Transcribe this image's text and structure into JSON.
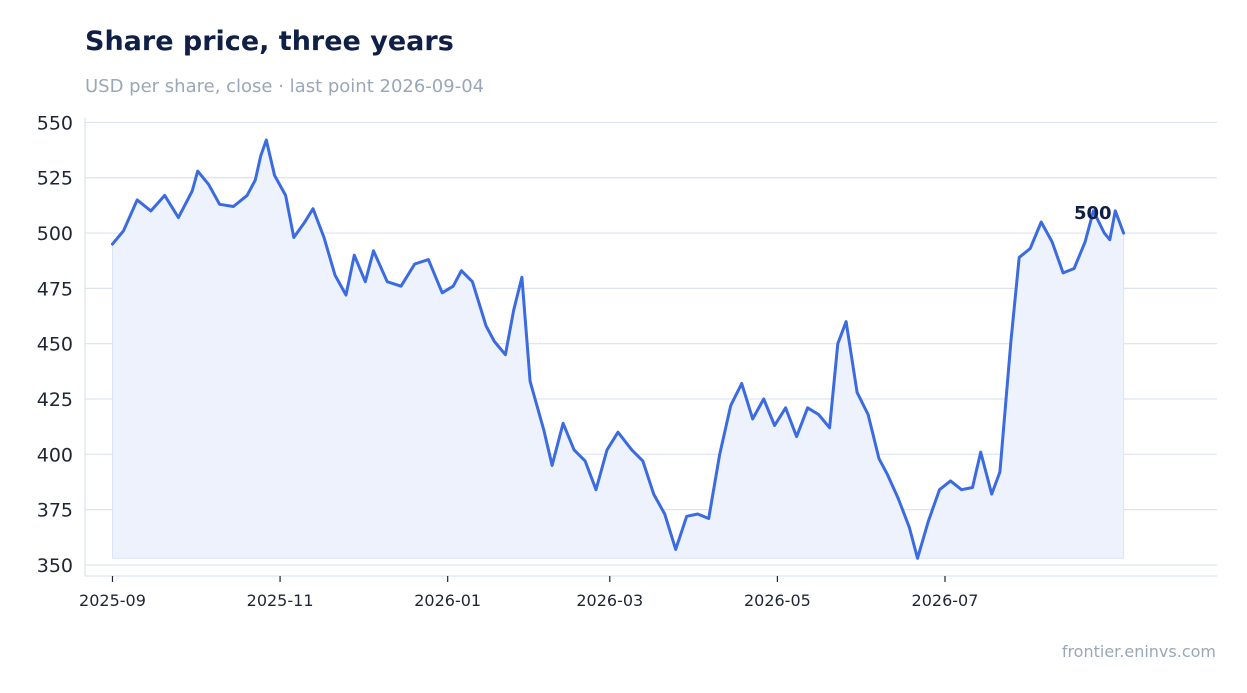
{
  "title": "Share price, three years",
  "subtitle": "USD per share, close · last point 2026-09-04",
  "footer": "frontier.eninvs.com",
  "colors": {
    "line": "#3b6be0",
    "fill": "#eef2fc",
    "grid": "#dde3f1",
    "title": "#0f1f45",
    "muted": "#9aa7b8"
  },
  "chart_data": {
    "type": "area",
    "title": "Share price, three years",
    "subtitle": "USD per share, close · last point 2026-09-04",
    "xlabel": "",
    "ylabel": "",
    "ylim": [
      345,
      552
    ],
    "yticks": [
      350,
      375,
      400,
      425,
      450,
      475,
      500,
      525,
      550
    ],
    "xlim": [
      "2025-08-22",
      "2026-10-08"
    ],
    "xticks": [
      "2025-09",
      "2025-11",
      "2026-01",
      "2026-03",
      "2026-05",
      "2026-07"
    ],
    "grid": true,
    "last_label": "500",
    "series": [
      {
        "x": [
          "2025-09-01",
          "2025-09-05",
          "2025-09-10",
          "2025-09-15",
          "2025-09-20",
          "2025-09-25",
          "2025-09-30",
          "2025-10-02",
          "2025-10-06",
          "2025-10-10",
          "2025-10-15",
          "2025-10-20",
          "2025-10-23",
          "2025-10-25",
          "2025-10-27",
          "2025-10-30",
          "2025-11-03",
          "2025-11-06",
          "2025-11-10",
          "2025-11-13",
          "2025-11-17",
          "2025-11-21",
          "2025-11-25",
          "2025-11-28",
          "2025-12-02",
          "2025-12-05",
          "2025-12-10",
          "2025-12-15",
          "2025-12-20",
          "2025-12-25",
          "2025-12-30",
          "2026-01-03",
          "2026-01-06",
          "2026-01-10",
          "2026-01-15",
          "2026-01-18",
          "2026-01-22",
          "2026-01-25",
          "2026-01-28",
          "2026-01-31",
          "2026-02-05",
          "2026-02-08",
          "2026-02-12",
          "2026-02-16",
          "2026-02-20",
          "2026-02-24",
          "2026-02-28",
          "2026-03-04",
          "2026-03-09",
          "2026-03-13",
          "2026-03-17",
          "2026-03-21",
          "2026-03-25",
          "2026-03-29",
          "2026-04-02",
          "2026-04-06",
          "2026-04-10",
          "2026-04-14",
          "2026-04-18",
          "2026-04-22",
          "2026-04-26",
          "2026-04-30",
          "2026-05-04",
          "2026-05-08",
          "2026-05-12",
          "2026-05-16",
          "2026-05-20",
          "2026-05-23",
          "2026-05-26",
          "2026-05-30",
          "2026-06-03",
          "2026-06-07",
          "2026-06-10",
          "2026-06-14",
          "2026-06-18",
          "2026-06-21",
          "2026-06-25",
          "2026-06-29",
          "2026-07-03",
          "2026-07-07",
          "2026-07-11",
          "2026-07-14",
          "2026-07-18",
          "2026-07-21",
          "2026-07-25",
          "2026-07-28",
          "2026-08-01",
          "2026-08-05",
          "2026-08-09",
          "2026-08-13",
          "2026-08-17",
          "2026-08-21",
          "2026-08-24",
          "2026-08-28",
          "2026-08-30",
          "2026-09-01",
          "2026-09-04"
        ],
        "values": [
          495,
          501,
          515,
          510,
          517,
          507,
          519,
          528,
          522,
          513,
          512,
          517,
          524,
          535,
          542,
          526,
          517,
          498,
          505,
          511,
          498,
          481,
          472,
          490,
          478,
          492,
          478,
          476,
          486,
          488,
          473,
          476,
          483,
          478,
          458,
          451,
          445,
          465,
          480,
          433,
          411,
          395,
          414,
          402,
          397,
          384,
          402,
          410,
          402,
          397,
          382,
          373,
          357,
          372,
          373,
          371,
          400,
          422,
          432,
          416,
          425,
          413,
          421,
          408,
          421,
          418,
          412,
          450,
          460,
          428,
          418,
          398,
          391,
          380,
          367,
          353,
          370,
          384,
          388,
          384,
          385,
          401,
          382,
          392,
          451,
          489,
          493,
          505,
          496,
          482,
          484,
          496,
          510,
          500,
          497,
          510,
          500
        ]
      }
    ]
  }
}
